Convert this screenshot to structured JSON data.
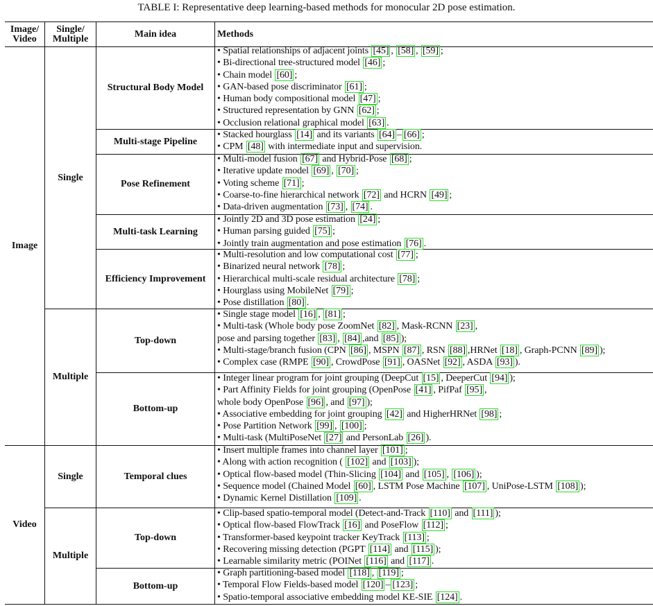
{
  "caption": "TABLE I: Representative deep learning-based methods for monocular 2D pose estimation.",
  "headers": {
    "col1": [
      "Image/",
      "Video"
    ],
    "col2": [
      "Single/",
      "Multiple"
    ],
    "col3": "Main idea",
    "col4": "Methods"
  },
  "groups": {
    "image": "Image",
    "video": "Video",
    "image_single": "Single",
    "image_multiple": "Multiple",
    "video_single": "Single",
    "video_multiple": "Multiple"
  },
  "sections": [
    {
      "idea": "Structural Body Model",
      "rows": [
        [
          {
            "t": "• Spatial relationships of adjacent joints "
          },
          {
            "c": "[45]"
          },
          {
            "t": ", "
          },
          {
            "c": "[58]"
          },
          {
            "t": ", "
          },
          {
            "c": "[59]"
          },
          {
            "t": ";"
          }
        ],
        [
          {
            "t": "• Bi-directional tree-structured model "
          },
          {
            "c": "[46]"
          },
          {
            "t": ";"
          }
        ],
        [
          {
            "t": "• Chain model "
          },
          {
            "c": "[60]"
          },
          {
            "t": ";"
          }
        ],
        [
          {
            "t": "• GAN-based pose discriminator "
          },
          {
            "c": "[61]"
          },
          {
            "t": ";"
          }
        ],
        [
          {
            "t": "• Human body compositional model "
          },
          {
            "c": "[47]"
          },
          {
            "t": ";"
          }
        ],
        [
          {
            "t": "• Structured representation by GNN "
          },
          {
            "c": "[62]"
          },
          {
            "t": ";"
          }
        ],
        [
          {
            "t": "• Occlusion relational graphical model "
          },
          {
            "c": "[63]"
          },
          {
            "t": "."
          }
        ]
      ]
    },
    {
      "idea": "Multi-stage Pipeline",
      "rows": [
        [
          {
            "t": "• Stacked hourglass "
          },
          {
            "c": "[14]"
          },
          {
            "t": " and its variants "
          },
          {
            "c": "[64]"
          },
          {
            "t": "–"
          },
          {
            "c": "[66]"
          },
          {
            "t": ";"
          }
        ],
        [
          {
            "t": "• CPM "
          },
          {
            "c": "[48]"
          },
          {
            "t": " with intermediate input and supervision."
          }
        ]
      ]
    },
    {
      "idea": "Pose Refinement",
      "rows": [
        [
          {
            "t": "• Multi-model fusion "
          },
          {
            "c": "[67]"
          },
          {
            "t": " and Hybrid-Pose "
          },
          {
            "c": "[68]"
          },
          {
            "t": ";"
          }
        ],
        [
          {
            "t": "• Iterative update model "
          },
          {
            "c": "[69]"
          },
          {
            "t": ", "
          },
          {
            "c": "[70]"
          },
          {
            "t": ";"
          }
        ],
        [
          {
            "t": "• Voting scheme "
          },
          {
            "c": "[71]"
          },
          {
            "t": ";"
          }
        ],
        [
          {
            "t": "• Coarse-to-fine hierarchical network "
          },
          {
            "c": "[72]"
          },
          {
            "t": " and HCRN "
          },
          {
            "c": "[49]"
          },
          {
            "t": ";"
          }
        ],
        [
          {
            "t": "• Data-driven augmentation "
          },
          {
            "c": "[73]"
          },
          {
            "t": ", "
          },
          {
            "c": "[74]"
          },
          {
            "t": "."
          }
        ]
      ]
    },
    {
      "idea": "Multi-task Learning",
      "rows": [
        [
          {
            "t": "• Jointly 2D and 3D pose estimation "
          },
          {
            "c": "[24]"
          },
          {
            "t": ";"
          }
        ],
        [
          {
            "t": "• Human parsing guided "
          },
          {
            "c": "[75]"
          },
          {
            "t": ";"
          }
        ],
        [
          {
            "t": "• Jointly train augmentation and pose estimation "
          },
          {
            "c": "[76]"
          },
          {
            "t": "."
          }
        ]
      ]
    },
    {
      "idea": "Efficiency Improvement",
      "rows": [
        [
          {
            "t": "• Multi-resolution and low computational cost "
          },
          {
            "c": "[77]"
          },
          {
            "t": ";"
          }
        ],
        [
          {
            "t": "• Binarized neural network "
          },
          {
            "c": "[78]"
          },
          {
            "t": ";"
          }
        ],
        [
          {
            "t": "• Hierarchical multi-scale residual architecture "
          },
          {
            "c": "[78]"
          },
          {
            "t": ";"
          }
        ],
        [
          {
            "t": "• Hourglass using MobileNet "
          },
          {
            "c": "[79]"
          },
          {
            "t": ";"
          }
        ],
        [
          {
            "t": "• Pose distillation "
          },
          {
            "c": "[80]"
          },
          {
            "t": "."
          }
        ]
      ]
    },
    {
      "idea": "Top-down",
      "rows": [
        [
          {
            "t": "• Single stage model "
          },
          {
            "c": "[16]"
          },
          {
            "t": ", "
          },
          {
            "c": "[81]"
          },
          {
            "t": ";"
          }
        ],
        [
          {
            "t": "• Multi-task (Whole body pose ZoomNet "
          },
          {
            "c": "[82]"
          },
          {
            "t": ", Mask-RCNN "
          },
          {
            "c": "[23]"
          },
          {
            "t": ","
          }
        ],
        [
          {
            "t": "pose and parsing together "
          },
          {
            "c": "[83]"
          },
          {
            "t": ", "
          },
          {
            "c": "[84]"
          },
          {
            "t": ",and "
          },
          {
            "c": "[85]"
          },
          {
            "t": ");"
          }
        ],
        [
          {
            "t": "• Multi-stage/branch fusion (CPN "
          },
          {
            "c": "[86]"
          },
          {
            "t": ", MSPN "
          },
          {
            "c": "[87]"
          },
          {
            "t": ", RSN "
          },
          {
            "c": "[88]"
          },
          {
            "t": ",HRNet "
          },
          {
            "c": "[18]"
          },
          {
            "t": ", Graph-PCNN "
          },
          {
            "c": "[89]"
          },
          {
            "t": ");"
          }
        ],
        [
          {
            "t": "• Complex case (RMPE "
          },
          {
            "c": "[90]"
          },
          {
            "t": ", CrowdPose "
          },
          {
            "c": "[91]"
          },
          {
            "t": ", OASNet "
          },
          {
            "c": "[92]"
          },
          {
            "t": ", ASDA "
          },
          {
            "c": "[93]"
          },
          {
            "t": ")."
          }
        ]
      ]
    },
    {
      "idea": "Bottom-up",
      "rows": [
        [
          {
            "t": "• Integer linear program for joint grouping (DeepCut "
          },
          {
            "c": "[15]"
          },
          {
            "t": ", DeeperCut "
          },
          {
            "c": "[94]"
          },
          {
            "t": ");"
          }
        ],
        [
          {
            "t": "• Part Affinity Fields for joint grouping (OpenPose "
          },
          {
            "c": "[41]"
          },
          {
            "t": ", PifPaf "
          },
          {
            "c": "[95]"
          },
          {
            "t": ","
          }
        ],
        [
          {
            "t": "whole body OpenPose "
          },
          {
            "c": "[96]"
          },
          {
            "t": ", and "
          },
          {
            "c": "[97]"
          },
          {
            "t": ");"
          }
        ],
        [
          {
            "t": "• Associative embedding for joint grouping "
          },
          {
            "c": "[42]"
          },
          {
            "t": " and HigherHRNet "
          },
          {
            "c": "[98]"
          },
          {
            "t": ";"
          }
        ],
        [
          {
            "t": "• Pose Partition Network "
          },
          {
            "c": "[99]"
          },
          {
            "t": ", "
          },
          {
            "c": "[100]"
          },
          {
            "t": ";"
          }
        ],
        [
          {
            "t": "• Multi-task (MultiPoseNet "
          },
          {
            "c": "[27]"
          },
          {
            "t": " and PersonLab "
          },
          {
            "c": "[26]"
          },
          {
            "t": ")."
          }
        ]
      ]
    },
    {
      "idea": "Temporal clues",
      "rows": [
        [
          {
            "t": "• Insert multiple frames into channel layer "
          },
          {
            "c": "[101]"
          },
          {
            "t": ";"
          }
        ],
        [
          {
            "t": "• Along with action recognition ( "
          },
          {
            "c": "[102]"
          },
          {
            "t": " and "
          },
          {
            "c": "[103]"
          },
          {
            "t": ");"
          }
        ],
        [
          {
            "t": "• Optical flow-based model (Thin-Slicing "
          },
          {
            "c": "[104]"
          },
          {
            "t": " and "
          },
          {
            "c": "[105]"
          },
          {
            "t": ", "
          },
          {
            "c": "[106]"
          },
          {
            "t": ");"
          }
        ],
        [
          {
            "t": "• Sequence model (Chained Model "
          },
          {
            "c": "[60]"
          },
          {
            "t": ", LSTM Pose Machine "
          },
          {
            "c": "[107]"
          },
          {
            "t": ", UniPose-LSTM "
          },
          {
            "c": "[108]"
          },
          {
            "t": ");"
          }
        ],
        [
          {
            "t": "• Dynamic Kernel Distillation "
          },
          {
            "c": "[109]"
          },
          {
            "t": "."
          }
        ]
      ]
    },
    {
      "idea": "Top-down",
      "rows": [
        [
          {
            "t": "• Clip-based spatio-temporal model (Detect-and-Track "
          },
          {
            "c": "[110]"
          },
          {
            "t": " and "
          },
          {
            "c": "[111]"
          },
          {
            "t": ");"
          }
        ],
        [
          {
            "t": "• Optical flow-based FlowTrack "
          },
          {
            "c": "[16]"
          },
          {
            "t": " and PoseFlow "
          },
          {
            "c": "[112]"
          },
          {
            "t": ";"
          }
        ],
        [
          {
            "t": "• Transformer-based keypoint tracker KeyTrack "
          },
          {
            "c": "[113]"
          },
          {
            "t": ";"
          }
        ],
        [
          {
            "t": "• Recovering missing detection (PGPT "
          },
          {
            "c": "[114]"
          },
          {
            "t": " and "
          },
          {
            "c": "[115]"
          },
          {
            "t": ");"
          }
        ],
        [
          {
            "t": "• Learnable similarity metric (POINet "
          },
          {
            "c": "[116]"
          },
          {
            "t": " and "
          },
          {
            "c": "[117]"
          },
          {
            "t": "."
          }
        ]
      ]
    },
    {
      "idea": "Bottom-up",
      "rows": [
        [
          {
            "t": "• Graph partitioning-based model "
          },
          {
            "c": "[118]"
          },
          {
            "t": ", "
          },
          {
            "c": "[119]"
          },
          {
            "t": ";"
          }
        ],
        [
          {
            "t": "• Temporal Flow Fields-based model "
          },
          {
            "c": "[120]"
          },
          {
            "t": "–"
          },
          {
            "c": "[123]"
          },
          {
            "t": ";"
          }
        ],
        [
          {
            "t": "• Spatio-temporal associative embedding model KE-SIE "
          },
          {
            "c": "[124]"
          },
          {
            "t": "."
          }
        ]
      ]
    }
  ]
}
